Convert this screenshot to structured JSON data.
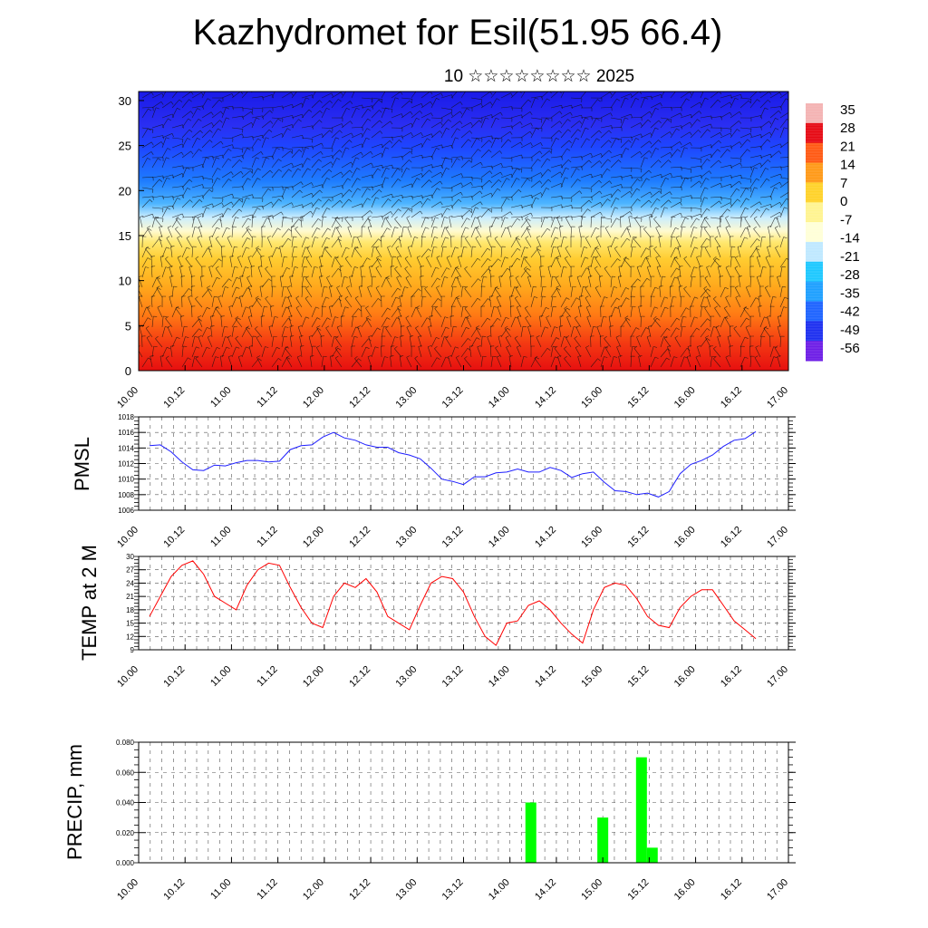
{
  "page": {
    "title": "Kazhydromet for Esil(51.95 66.4)",
    "subtitle": "10 ☆☆☆☆☆☆☆☆ 2025"
  },
  "chart_data": [
    {
      "type": "heatmap",
      "name": "cross-section",
      "title": "",
      "ylim": [
        0,
        31
      ],
      "yticks": [
        0,
        5,
        10,
        15,
        20,
        25,
        30
      ],
      "xticks": [
        "10.00",
        "10.12",
        "11.00",
        "11.12",
        "12.00",
        "12.12",
        "13.00",
        "13.12",
        "14.00",
        "14.12",
        "15.00",
        "15.12",
        "16.00",
        "16.12",
        "17.00"
      ],
      "overlay": "wind barbs",
      "colorbar": {
        "labels": [
          "35",
          "28",
          "21",
          "14",
          "7",
          "0",
          "-7",
          "-14",
          "-21",
          "-28",
          "-35",
          "-42",
          "-49",
          "-56"
        ],
        "colors": [
          "#f4b3b3",
          "#e60a14",
          "#ff5a14",
          "#ff9a18",
          "#ffd22a",
          "#fff490",
          "#ffffd8",
          "#bfe8ff",
          "#1ec8ff",
          "#1ea0ff",
          "#1e64ff",
          "#1e30f0",
          "#6e1ee6"
        ]
      }
    },
    {
      "type": "line",
      "ylabel": "PMSL",
      "ylim": [
        1006,
        1018
      ],
      "yticks": [
        1006,
        1008,
        1010,
        1012,
        1014,
        1016,
        1018
      ],
      "xticks": [
        "10.00",
        "10.12",
        "11.00",
        "11.12",
        "12.00",
        "12.12",
        "13.00",
        "13.12",
        "14.00",
        "14.12",
        "15.00",
        "15.12",
        "16.00",
        "16.12",
        "17.00"
      ],
      "color": "#1e1eff",
      "values": [
        1014.3,
        1014.4,
        1013.5,
        1012.2,
        1011.2,
        1011.1,
        1011.8,
        1011.7,
        1012.1,
        1012.4,
        1012.4,
        1012.2,
        1012.3,
        1013.8,
        1014.3,
        1014.4,
        1015.4,
        1016.0,
        1015.3,
        1015.0,
        1014.4,
        1014.1,
        1014.1,
        1013.4,
        1013.1,
        1012.6,
        1011.4,
        1010.0,
        1009.7,
        1009.3,
        1010.3,
        1010.3,
        1010.8,
        1010.9,
        1011.3,
        1010.9,
        1010.9,
        1011.5,
        1011.1,
        1010.2,
        1010.7,
        1010.9,
        1009.6,
        1008.5,
        1008.4,
        1008.0,
        1008.2,
        1007.7,
        1008.4,
        1010.7,
        1011.9,
        1012.4,
        1013.1,
        1014.2,
        1015.0,
        1015.2,
        1016.1
      ]
    },
    {
      "type": "line",
      "ylabel": "TEMP at 2 M",
      "ylim": [
        9,
        30
      ],
      "yticks": [
        9,
        12,
        15,
        18,
        21,
        24,
        27,
        30
      ],
      "xticks": [
        "10.00",
        "10.12",
        "11.00",
        "11.12",
        "12.00",
        "12.12",
        "13.00",
        "13.12",
        "14.00",
        "14.12",
        "15.00",
        "15.12",
        "16.00",
        "16.12",
        "17.00"
      ],
      "color": "#ff0000",
      "values": [
        16.5,
        21.0,
        25.5,
        28.0,
        29.0,
        26.0,
        21.0,
        19.5,
        18.0,
        23.5,
        27.0,
        28.5,
        28.0,
        23.0,
        18.5,
        15.0,
        14.0,
        21.0,
        24.0,
        23.0,
        25.0,
        22.0,
        16.5,
        15.0,
        13.5,
        19.0,
        24.0,
        25.5,
        25.0,
        22.0,
        16.5,
        12.0,
        10.0,
        15.0,
        15.5,
        19.0,
        20.0,
        18.0,
        15.0,
        12.5,
        10.5,
        18.0,
        23.0,
        24.0,
        23.5,
        20.5,
        16.5,
        14.5,
        14.0,
        18.5,
        21.0,
        22.5,
        22.5,
        19.0,
        15.5,
        13.5,
        11.5
      ]
    },
    {
      "type": "bar",
      "ylabel": "PRECIP, mm",
      "ylim": [
        0,
        0.08
      ],
      "yticks": [
        "0.000",
        "0.020",
        "0.040",
        "0.060",
        "0.080"
      ],
      "xticks": [
        "10.00",
        "10.12",
        "11.00",
        "11.12",
        "12.00",
        "12.12",
        "13.00",
        "13.12",
        "14.00",
        "14.12",
        "15.00",
        "15.12",
        "16.00",
        "16.12",
        "17.00"
      ],
      "color": "#00ff00",
      "bars": [
        {
          "x": 50.7,
          "value": 0.04
        },
        {
          "x": 60.0,
          "value": 0.03
        },
        {
          "x": 65.0,
          "value": 0.07
        },
        {
          "x": 66.4,
          "value": 0.01
        }
      ]
    }
  ]
}
